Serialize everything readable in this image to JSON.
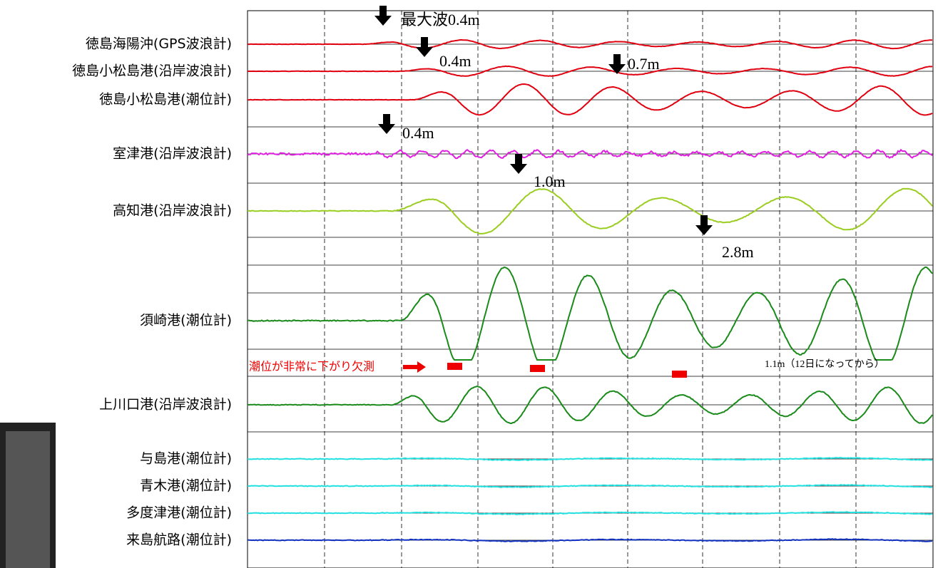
{
  "stations": [
    "徳島海陽沖(GPS波浪計)",
    "徳島小松島港(沿岸波浪計)",
    "徳島小松島港(潮位計)",
    "室津港(沿岸波浪計)",
    "高知港(沿岸波浪計)",
    "須崎港(潮位計)",
    "上川口港(沿岸波浪計)",
    "与島港(潮位計)",
    "青木港(潮位計)",
    "多度津港(潮位計)",
    "来島航路(潮位計)"
  ],
  "annotations": {
    "max_wave": "最大波0.4m",
    "peaks": [
      "0.4m",
      "0.7m",
      "0.4m",
      "1.0m",
      "2.8m"
    ],
    "missing_note": "潮位が非常に下がり欠測",
    "late_note": "1.1m（12日になってから）"
  }
}
